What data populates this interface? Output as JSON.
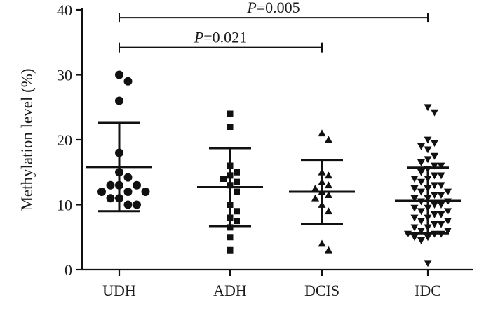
{
  "chart_data": {
    "type": "scatter",
    "ylabel": "Methylation level (%)",
    "xlabel": "",
    "ylim": [
      0,
      40
    ],
    "yticks": [
      0,
      10,
      20,
      30,
      40
    ],
    "categories": [
      "UDH",
      "ADH",
      "DCIS",
      "IDC"
    ],
    "grid": false,
    "color": "#111111",
    "series": [
      {
        "category": "UDH",
        "marker": "circle",
        "mean": 15.8,
        "sd_upper": 22.6,
        "sd_lower": 9.0,
        "values": [
          30,
          29,
          26,
          18,
          15,
          14.2,
          13,
          13,
          13,
          12,
          12,
          12,
          11,
          11,
          10,
          10
        ]
      },
      {
        "category": "ADH",
        "marker": "square",
        "mean": 12.7,
        "sd_upper": 18.7,
        "sd_lower": 6.7,
        "values": [
          24,
          22,
          16,
          15,
          14.5,
          14,
          13.5,
          13,
          12,
          10,
          9,
          8,
          7.5,
          6.5,
          5,
          3
        ]
      },
      {
        "category": "DCIS",
        "marker": "triangle-up",
        "mean": 12.0,
        "sd_upper": 16.9,
        "sd_lower": 7.0,
        "values": [
          21,
          20,
          15,
          14.5,
          13.5,
          13,
          12.5,
          12,
          11.5,
          11,
          10,
          9,
          4,
          3
        ]
      },
      {
        "category": "IDC",
        "marker": "triangle-down",
        "mean": 10.6,
        "sd_upper": 15.7,
        "sd_lower": 5.6,
        "values": [
          25,
          24.2,
          20,
          19.5,
          19,
          18.5,
          17.5,
          17,
          16.5,
          16,
          16,
          15.5,
          15,
          14.5,
          14.5,
          14,
          14,
          13.5,
          13,
          13,
          12.5,
          12.5,
          12,
          12,
          11.5,
          11.5,
          11,
          11,
          10.5,
          10.5,
          10,
          10,
          9.5,
          9.5,
          9,
          9,
          8.5,
          8.5,
          8,
          8,
          7.5,
          7.5,
          7,
          7,
          6.5,
          6.5,
          6,
          6,
          5.5,
          5.5,
          5.5,
          5,
          5,
          4.5,
          1
        ]
      }
    ],
    "annotations": [
      {
        "from": "UDH",
        "to": "IDC",
        "p_symbol": "P",
        "p_rest": "=0.005",
        "y": 38.8
      },
      {
        "from": "UDH",
        "to": "DCIS",
        "p_symbol": "P",
        "p_rest": "=0.021",
        "y": 34.2
      }
    ]
  }
}
